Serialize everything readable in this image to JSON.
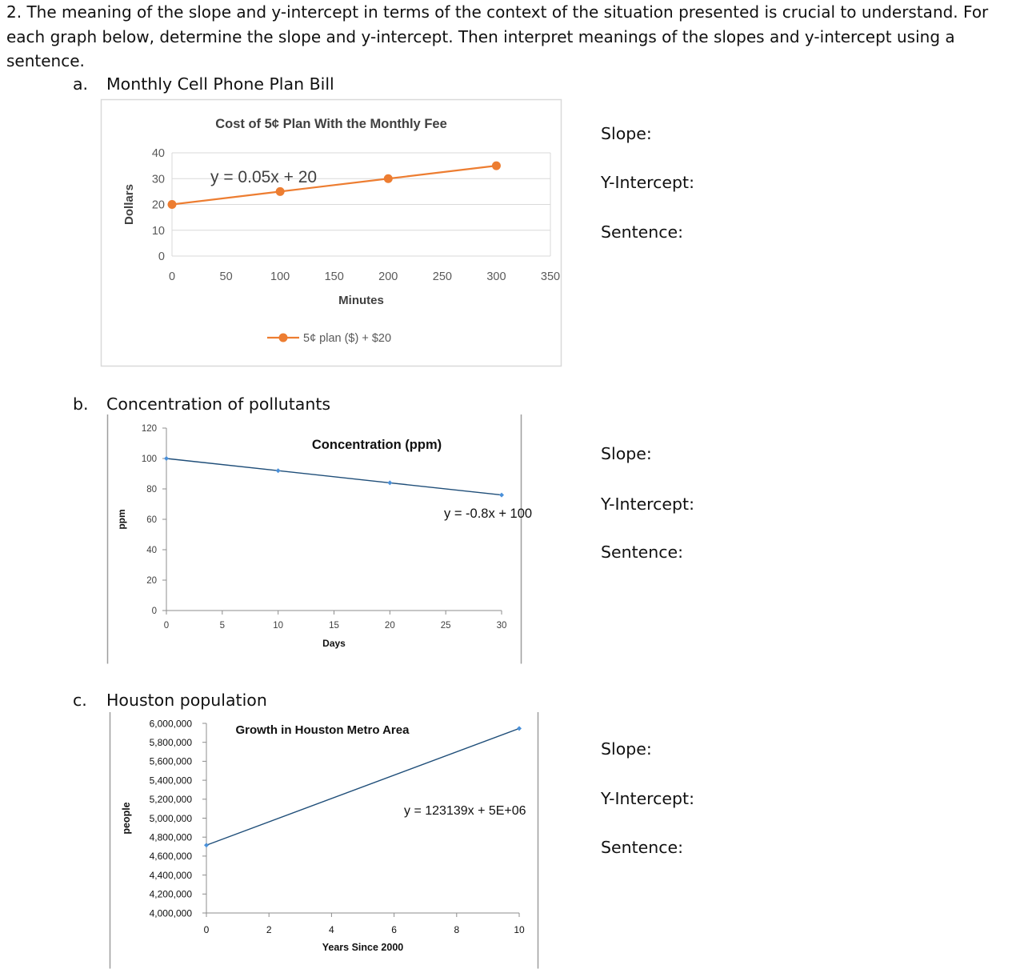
{
  "question": {
    "text": "2. The meaning of the slope and y-intercept in terms of the context of the situation presented is crucial to understand. For each graph below, determine the slope and y-intercept.  Then interpret meanings of the slopes and y-intercept using a sentence."
  },
  "answer_labels": {
    "slope": "Slope:",
    "intercept": "Y-Intercept:",
    "sentence": "Sentence:"
  },
  "parts": [
    {
      "letter": "a.",
      "title": "Monthly Cell Phone Plan Bill"
    },
    {
      "letter": "b.",
      "title": "Concentration of pollutants"
    },
    {
      "letter": "c.",
      "title": "Houston population"
    }
  ],
  "chart_data": [
    {
      "type": "line",
      "title": "Cost of 5¢ Plan With the Monthly Fee",
      "xlabel": "Minutes",
      "ylabel": "Dollars",
      "x": [
        0,
        100,
        200,
        300
      ],
      "series": [
        {
          "name": "5¢ plan ($) + $20",
          "values": [
            20,
            25,
            30,
            35
          ],
          "color": "#ed7d31"
        }
      ],
      "trendline_label": "y = 0.05x + 20",
      "xlim": [
        0,
        350
      ],
      "ylim": [
        0,
        40
      ],
      "xticks": [
        "0",
        "50",
        "100",
        "150",
        "200",
        "250",
        "300",
        "350"
      ],
      "yticks": [
        "0",
        "10",
        "20",
        "30",
        "40"
      ],
      "grid": true,
      "legend": "bottom"
    },
    {
      "type": "scatter",
      "title": "Concentration (ppm)",
      "xlabel": "Days",
      "ylabel": "ppm",
      "x": [
        0,
        10,
        20,
        30
      ],
      "series": [
        {
          "values": [
            100,
            92,
            84,
            76
          ],
          "color": "#1f4e79"
        }
      ],
      "trendline_label": "y = -0.8x + 100",
      "xlim": [
        0,
        30
      ],
      "ylim": [
        0,
        120
      ],
      "xticks": [
        "0",
        "5",
        "10",
        "15",
        "20",
        "25",
        "30"
      ],
      "yticks": [
        "0",
        "20",
        "40",
        "60",
        "80",
        "100",
        "120"
      ],
      "grid": false
    },
    {
      "type": "scatter",
      "title": "Growth in Houston Metro Area",
      "xlabel": "Years Since 2000",
      "ylabel": "people",
      "x": [
        0,
        10
      ],
      "series": [
        {
          "values": [
            4715000,
            5946000
          ],
          "color": "#1f4e79"
        }
      ],
      "trendline_label": "y = 123139x + 5E+06",
      "xlim": [
        0,
        10
      ],
      "ylim": [
        4000000,
        6000000
      ],
      "xticks": [
        "0",
        "2",
        "4",
        "6",
        "8",
        "10"
      ],
      "yticks": [
        "4,000,000",
        "4,200,000",
        "4,400,000",
        "4,600,000",
        "4,800,000",
        "5,000,000",
        "5,200,000",
        "5,400,000",
        "5,600,000",
        "5,800,000",
        "6,000,000"
      ],
      "grid": false
    }
  ]
}
